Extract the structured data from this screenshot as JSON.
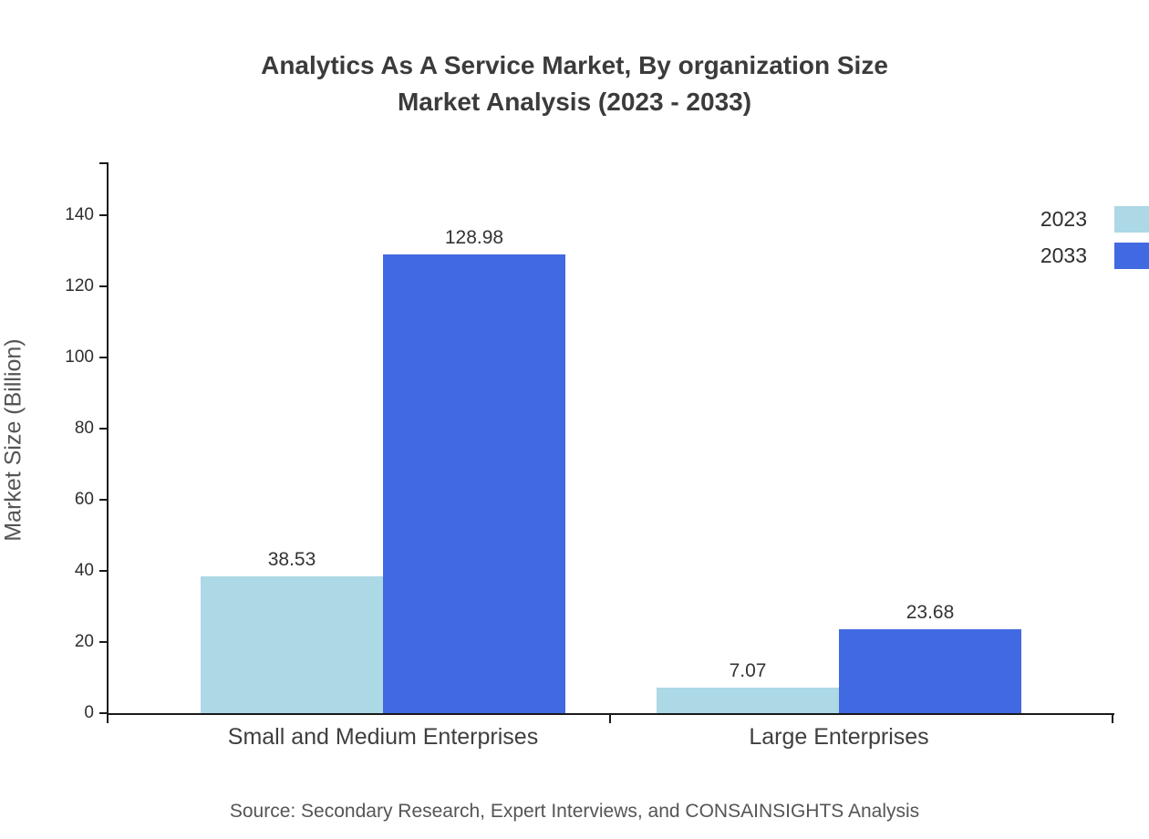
{
  "chart_data": {
    "type": "bar",
    "title": "Analytics As A Service Market, By organization Size",
    "subtitle": "Market Analysis (2023 - 2033)",
    "categories": [
      "Small and Medium Enterprises",
      "Large Enterprises"
    ],
    "series": [
      {
        "name": "2023",
        "color": "#add8e6",
        "values": [
          38.53,
          7.07
        ]
      },
      {
        "name": "2033",
        "color": "#4169e1",
        "values": [
          128.98,
          23.68
        ]
      }
    ],
    "value_labels": [
      [
        "38.53",
        "7.07"
      ],
      [
        "128.98",
        "23.68"
      ]
    ],
    "ylabel": "Market Size (Billion)",
    "xlabel": "",
    "ylim": [
      0,
      155
    ],
    "yticks": [
      0,
      20,
      40,
      60,
      80,
      100,
      120,
      140
    ],
    "grid": false,
    "legend_position": "top-right"
  },
  "footer": {
    "source": "Source: Secondary Research, Expert Interviews, and CONSAINSIGHTS Analysis"
  }
}
